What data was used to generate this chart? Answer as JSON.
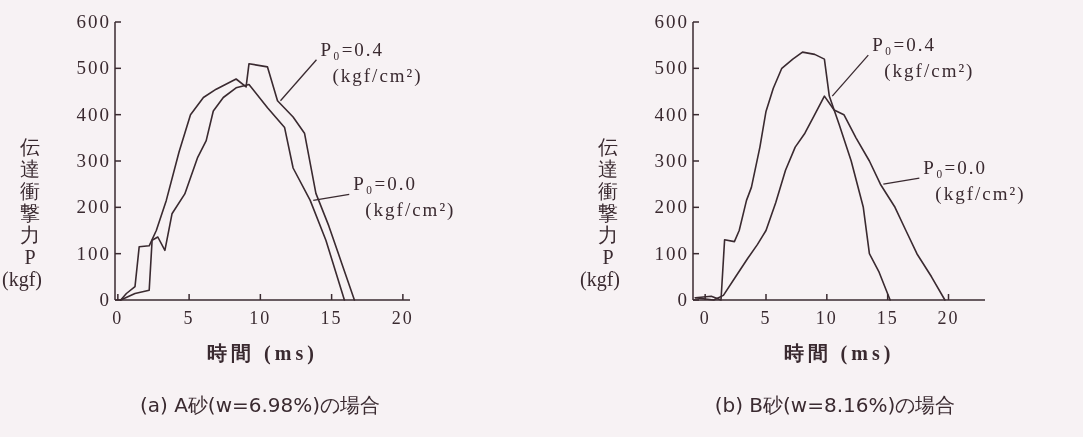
{
  "chart_data": [
    {
      "type": "line",
      "xlabel": "時間 (ms)",
      "ylabel": "伝達衝撃力 P (kgf)",
      "xlim": [
        -0.2,
        20.5
      ],
      "ylim": [
        0,
        600
      ],
      "xticks": [
        0,
        5,
        10,
        15,
        20
      ],
      "yticks": [
        0,
        100,
        200,
        300,
        400,
        500,
        600
      ],
      "grid": false,
      "annotations": [
        "(a) A砂(w=6.98%)の場合"
      ],
      "series": [
        {
          "name": "P₀=0.4 (kgf/cm²)",
          "color": "#3a2a30",
          "x": [
            0.2,
            0.6,
            1.2,
            1.5,
            2.2,
            2.7,
            3.4,
            4.3,
            5.1,
            6.0,
            6.9,
            8.3,
            9.0,
            9.2,
            10.5,
            11.2,
            12.3,
            13.1,
            13.9,
            14.8,
            15.7,
            16.6
          ],
          "values": [
            0,
            14,
            29,
            115,
            117,
            150,
            215,
            320,
            400,
            437,
            455,
            477,
            460,
            510,
            503,
            430,
            395,
            360,
            230,
            160,
            80,
            0
          ]
        },
        {
          "name": "P₀=0.0 (kgf/cm²)",
          "color": "#3a2a30",
          "x": [
            0.2,
            1.2,
            2.2,
            2.4,
            2.8,
            3.3,
            3.8,
            4.7,
            5.6,
            6.2,
            6.7,
            7.4,
            8.3,
            9.2,
            10.5,
            11.7,
            12.3,
            13.5,
            14.6,
            15.9
          ],
          "values": [
            0,
            14,
            21,
            129,
            136,
            107,
            186,
            229,
            308,
            344,
            408,
            437,
            458,
            465,
            415,
            372,
            285,
            215,
            129,
            0
          ]
        }
      ]
    },
    {
      "type": "line",
      "xlabel": "時間 (ms)",
      "ylabel": "伝達衝撃力 P (kgf)",
      "xlim": [
        -1,
        23
      ],
      "ylim": [
        0,
        600
      ],
      "xticks": [
        0,
        5,
        10,
        15,
        20
      ],
      "yticks": [
        0,
        100,
        200,
        300,
        400,
        500,
        600
      ],
      "grid": false,
      "annotations": [
        "(b) B砂(w=8.16%)の場合"
      ],
      "series": [
        {
          "name": "P₀=0.4 (kgf/cm²)",
          "color": "#3a2a30",
          "x": [
            -0.8,
            0.5,
            1.3,
            1.6,
            2.4,
            2.8,
            3.4,
            3.8,
            4.5,
            5.0,
            5.6,
            6.3,
            7.2,
            8.0,
            9.0,
            9.8,
            10.2,
            11.0,
            12.0,
            13.0,
            13.5,
            14.3,
            15.2
          ],
          "values": [
            5,
            8,
            0,
            130,
            126,
            150,
            215,
            243,
            330,
            407,
            457,
            500,
            520,
            535,
            530,
            520,
            440,
            380,
            300,
            200,
            100,
            60,
            0
          ]
        },
        {
          "name": "P₀=0.0 (kgf/cm²)",
          "color": "#3a2a30",
          "x": [
            -0.8,
            0.7,
            1.5,
            2.5,
            3.5,
            4.3,
            5.0,
            5.8,
            6.6,
            7.4,
            8.2,
            9.0,
            9.8,
            10.6,
            11.4,
            12.4,
            13.5,
            14.4,
            15.6,
            16.5,
            17.4,
            18.6,
            19.7
          ],
          "values": [
            5,
            0,
            10,
            50,
            90,
            120,
            150,
            210,
            280,
            330,
            360,
            400,
            440,
            410,
            400,
            350,
            300,
            250,
            200,
            150,
            100,
            50,
            0
          ]
        }
      ]
    }
  ]
}
